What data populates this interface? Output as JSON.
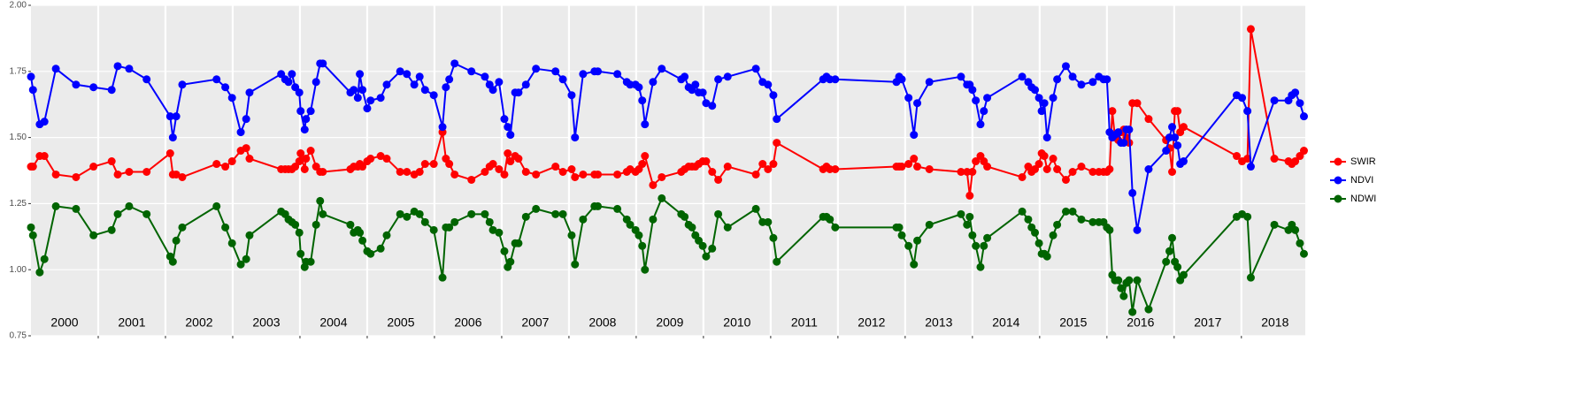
{
  "chart_data": {
    "type": "line",
    "x": [
      2000.0,
      2000.03,
      2000.13,
      2000.2,
      2000.37,
      2000.67,
      2000.93,
      2001.2,
      2001.29,
      2001.46,
      2001.72,
      2002.07,
      2002.11,
      2002.16,
      2002.25,
      2002.76,
      2002.89,
      2002.99,
      2003.12,
      2003.2,
      2003.25,
      2003.72,
      2003.78,
      2003.83,
      2003.88,
      2003.93,
      2003.99,
      2004.01,
      2004.07,
      2004.09,
      2004.16,
      2004.24,
      2004.3,
      2004.34,
      2004.75,
      2004.8,
      2004.86,
      2004.89,
      2004.93,
      2005.0,
      2005.05,
      2005.2,
      2005.29,
      2005.49,
      2005.59,
      2005.7,
      2005.78,
      2005.86,
      2005.99,
      2006.12,
      2006.17,
      2006.22,
      2006.3,
      2006.55,
      2006.75,
      2006.82,
      2006.87,
      2006.96,
      2007.04,
      2007.09,
      2007.13,
      2007.2,
      2007.25,
      2007.36,
      2007.51,
      2007.8,
      2007.91,
      2008.04,
      2008.09,
      2008.21,
      2008.38,
      2008.43,
      2008.72,
      2008.86,
      2008.91,
      2008.99,
      2009.04,
      2009.09,
      2009.13,
      2009.25,
      2009.38,
      2009.67,
      2009.72,
      2009.78,
      2009.83,
      2009.88,
      2009.93,
      2009.99,
      2010.04,
      2010.13,
      2010.22,
      2010.36,
      2010.78,
      2010.88,
      2010.96,
      2011.04,
      2011.09,
      2011.78,
      2011.83,
      2011.88,
      2011.96,
      2012.87,
      2012.91,
      2012.95,
      2013.05,
      2013.13,
      2013.18,
      2013.36,
      2013.83,
      2013.92,
      2013.96,
      2014.0,
      2014.05,
      2014.12,
      2014.17,
      2014.22,
      2014.74,
      2014.83,
      2014.88,
      2014.93,
      2014.99,
      2015.03,
      2015.07,
      2015.11,
      2015.2,
      2015.26,
      2015.39,
      2015.49,
      2015.62,
      2015.79,
      2015.88,
      2015.95,
      2016.0,
      2016.04,
      2016.08,
      2016.12,
      2016.17,
      2016.21,
      2016.25,
      2016.29,
      2016.33,
      2016.38,
      2016.45,
      2016.62,
      2016.88,
      2016.93,
      2016.97,
      2017.01,
      2017.05,
      2017.09,
      2017.14,
      2017.93,
      2018.01,
      2018.09,
      2018.14,
      2018.49,
      2018.7,
      2018.75,
      2018.8,
      2018.87,
      2018.93
    ],
    "series": [
      {
        "name": "SWIR",
        "color": "#ff0000",
        "values": [
          1.39,
          1.39,
          1.43,
          1.43,
          1.36,
          1.35,
          1.39,
          1.41,
          1.36,
          1.37,
          1.37,
          1.44,
          1.36,
          1.36,
          1.35,
          1.4,
          1.39,
          1.41,
          1.45,
          1.46,
          1.42,
          1.38,
          1.38,
          1.38,
          1.38,
          1.39,
          1.41,
          1.44,
          1.38,
          1.42,
          1.45,
          1.39,
          1.37,
          1.37,
          1.38,
          1.39,
          1.39,
          1.4,
          1.39,
          1.41,
          1.42,
          1.43,
          1.42,
          1.37,
          1.37,
          1.36,
          1.37,
          1.4,
          1.4,
          1.52,
          1.42,
          1.4,
          1.36,
          1.34,
          1.37,
          1.39,
          1.4,
          1.38,
          1.36,
          1.44,
          1.41,
          1.43,
          1.42,
          1.37,
          1.36,
          1.39,
          1.37,
          1.38,
          1.35,
          1.36,
          1.36,
          1.36,
          1.36,
          1.37,
          1.38,
          1.37,
          1.38,
          1.4,
          1.43,
          1.32,
          1.35,
          1.37,
          1.38,
          1.39,
          1.39,
          1.39,
          1.4,
          1.41,
          1.41,
          1.37,
          1.34,
          1.39,
          1.36,
          1.4,
          1.38,
          1.4,
          1.48,
          1.38,
          1.39,
          1.38,
          1.38,
          1.39,
          1.39,
          1.39,
          1.4,
          1.42,
          1.39,
          1.38,
          1.37,
          1.37,
          1.28,
          1.37,
          1.41,
          1.43,
          1.41,
          1.39,
          1.35,
          1.39,
          1.37,
          1.38,
          1.4,
          1.44,
          1.43,
          1.38,
          1.42,
          1.38,
          1.34,
          1.37,
          1.39,
          1.37,
          1.37,
          1.37,
          1.37,
          1.38,
          1.6,
          1.5,
          1.49,
          1.52,
          1.53,
          1.5,
          1.48,
          1.63,
          1.63,
          1.57,
          1.49,
          1.46,
          1.37,
          1.6,
          1.6,
          1.52,
          1.54,
          1.43,
          1.41,
          1.42,
          1.91,
          1.42,
          1.41,
          1.4,
          1.41,
          1.43,
          1.45
        ]
      },
      {
        "name": "NDVI",
        "color": "#0000ff",
        "values": [
          1.73,
          1.68,
          1.55,
          1.56,
          1.76,
          1.7,
          1.69,
          1.68,
          1.77,
          1.76,
          1.72,
          1.58,
          1.5,
          1.58,
          1.7,
          1.72,
          1.69,
          1.65,
          1.52,
          1.57,
          1.67,
          1.74,
          1.72,
          1.71,
          1.74,
          1.69,
          1.67,
          1.6,
          1.53,
          1.57,
          1.6,
          1.71,
          1.78,
          1.78,
          1.67,
          1.68,
          1.65,
          1.74,
          1.68,
          1.61,
          1.64,
          1.65,
          1.7,
          1.75,
          1.74,
          1.7,
          1.73,
          1.68,
          1.66,
          1.54,
          1.69,
          1.72,
          1.78,
          1.75,
          1.73,
          1.7,
          1.68,
          1.71,
          1.57,
          1.54,
          1.51,
          1.67,
          1.67,
          1.7,
          1.76,
          1.75,
          1.72,
          1.66,
          1.5,
          1.74,
          1.75,
          1.75,
          1.74,
          1.71,
          1.7,
          1.7,
          1.69,
          1.64,
          1.55,
          1.71,
          1.76,
          1.72,
          1.73,
          1.69,
          1.68,
          1.7,
          1.67,
          1.67,
          1.63,
          1.62,
          1.72,
          1.73,
          1.76,
          1.71,
          1.7,
          1.66,
          1.57,
          1.72,
          1.73,
          1.72,
          1.72,
          1.71,
          1.73,
          1.72,
          1.65,
          1.51,
          1.63,
          1.71,
          1.73,
          1.7,
          1.7,
          1.68,
          1.64,
          1.55,
          1.6,
          1.65,
          1.73,
          1.71,
          1.69,
          1.68,
          1.65,
          1.6,
          1.63,
          1.5,
          1.65,
          1.72,
          1.77,
          1.73,
          1.7,
          1.71,
          1.73,
          1.72,
          1.72,
          1.52,
          1.5,
          1.51,
          1.52,
          1.48,
          1.48,
          1.53,
          1.53,
          1.29,
          1.15,
          1.38,
          1.45,
          1.5,
          1.54,
          1.5,
          1.47,
          1.4,
          1.41,
          1.66,
          1.65,
          1.6,
          1.39,
          1.64,
          1.64,
          1.66,
          1.67,
          1.63,
          1.58
        ]
      },
      {
        "name": "NDWI",
        "color": "#006400",
        "values": [
          1.16,
          1.13,
          0.99,
          1.04,
          1.24,
          1.23,
          1.13,
          1.15,
          1.21,
          1.24,
          1.21,
          1.05,
          1.03,
          1.11,
          1.16,
          1.24,
          1.16,
          1.1,
          1.02,
          1.04,
          1.13,
          1.22,
          1.21,
          1.19,
          1.18,
          1.17,
          1.14,
          1.06,
          1.01,
          1.03,
          1.03,
          1.17,
          1.26,
          1.21,
          1.17,
          1.14,
          1.15,
          1.14,
          1.11,
          1.07,
          1.06,
          1.08,
          1.13,
          1.21,
          1.2,
          1.22,
          1.21,
          1.18,
          1.15,
          0.97,
          1.16,
          1.16,
          1.18,
          1.21,
          1.21,
          1.18,
          1.15,
          1.14,
          1.07,
          1.01,
          1.03,
          1.1,
          1.1,
          1.2,
          1.23,
          1.21,
          1.21,
          1.13,
          1.02,
          1.19,
          1.24,
          1.24,
          1.23,
          1.19,
          1.17,
          1.15,
          1.13,
          1.09,
          1.0,
          1.19,
          1.27,
          1.21,
          1.2,
          1.17,
          1.16,
          1.13,
          1.11,
          1.09,
          1.05,
          1.08,
          1.21,
          1.16,
          1.23,
          1.18,
          1.18,
          1.12,
          1.03,
          1.2,
          1.2,
          1.19,
          1.16,
          1.16,
          1.16,
          1.13,
          1.09,
          1.02,
          1.11,
          1.17,
          1.21,
          1.17,
          1.2,
          1.13,
          1.09,
          1.01,
          1.09,
          1.12,
          1.22,
          1.19,
          1.16,
          1.14,
          1.1,
          1.06,
          1.06,
          1.05,
          1.13,
          1.17,
          1.22,
          1.22,
          1.19,
          1.18,
          1.18,
          1.18,
          1.16,
          1.15,
          0.98,
          0.96,
          0.96,
          0.93,
          0.9,
          0.95,
          0.96,
          0.84,
          0.96,
          0.85,
          1.03,
          1.07,
          1.12,
          1.03,
          1.01,
          0.96,
          0.98,
          1.2,
          1.21,
          1.2,
          0.97,
          1.17,
          1.15,
          1.17,
          1.15,
          1.1,
          1.06
        ]
      }
    ],
    "xlim": [
      2000,
      2018.95
    ],
    "xticks": [
      2001,
      2002,
      2003,
      2004,
      2005,
      2006,
      2007,
      2008,
      2009,
      2010,
      2011,
      2012,
      2013,
      2014,
      2015,
      2016,
      2017,
      2018
    ],
    "year_labels": [
      {
        "value": 2000.5,
        "label": "2000"
      },
      {
        "value": 2001.5,
        "label": "2001"
      },
      {
        "value": 2002.5,
        "label": "2002"
      },
      {
        "value": 2003.5,
        "label": "2003"
      },
      {
        "value": 2004.5,
        "label": "2004"
      },
      {
        "value": 2005.5,
        "label": "2005"
      },
      {
        "value": 2006.5,
        "label": "2006"
      },
      {
        "value": 2007.5,
        "label": "2007"
      },
      {
        "value": 2008.5,
        "label": "2008"
      },
      {
        "value": 2009.5,
        "label": "2009"
      },
      {
        "value": 2010.5,
        "label": "2010"
      },
      {
        "value": 2011.5,
        "label": "2011"
      },
      {
        "value": 2012.5,
        "label": "2012"
      },
      {
        "value": 2013.5,
        "label": "2013"
      },
      {
        "value": 2014.5,
        "label": "2014"
      },
      {
        "value": 2015.5,
        "label": "2015"
      },
      {
        "value": 2016.5,
        "label": "2016"
      },
      {
        "value": 2017.5,
        "label": "2017"
      },
      {
        "value": 2018.5,
        "label": "2018"
      }
    ],
    "ylim": [
      0.75,
      2.0
    ],
    "yticks": [
      {
        "value": 0.75,
        "label": "0.75"
      },
      {
        "value": 1.0,
        "label": "1.00"
      },
      {
        "value": 1.25,
        "label": "1.25"
      },
      {
        "value": 1.5,
        "label": "1.50"
      },
      {
        "value": 1.75,
        "label": "1.75"
      },
      {
        "value": 2.0,
        "label": "2.00"
      }
    ],
    "grid": true,
    "legend": "right"
  }
}
